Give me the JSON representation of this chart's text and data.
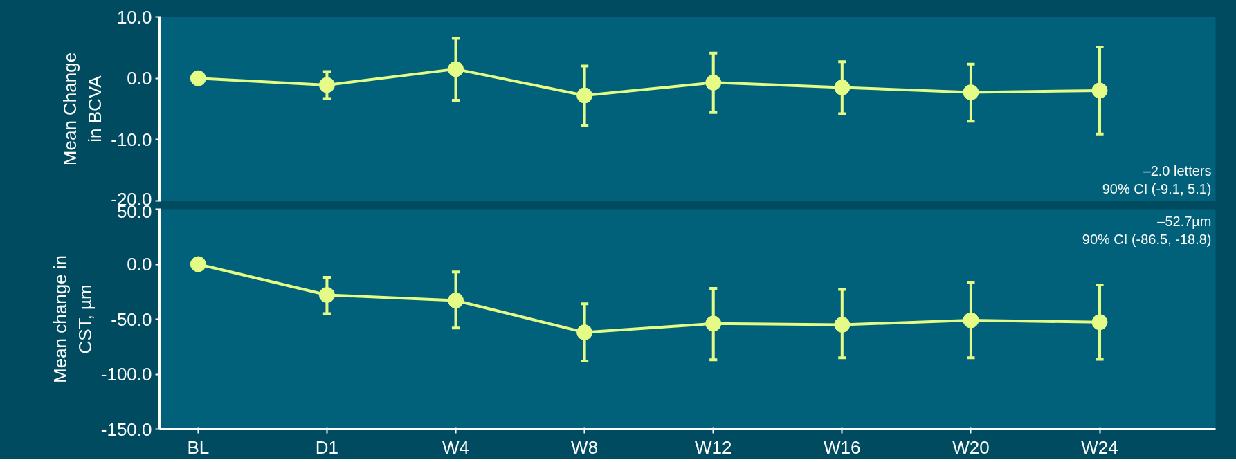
{
  "chart_data": [
    {
      "type": "line",
      "ylabel": "Mean Change in BCVA",
      "categories": [
        null,
        null,
        null,
        null,
        null,
        null,
        null,
        null
      ],
      "series": [
        {
          "color": "#e4fb86",
          "values": [
            0,
            -1.1,
            1.5,
            -2.8,
            -0.7,
            -1.5,
            -2.3,
            -2.0
          ],
          "errors": [
            null,
            [
              -3.3,
              1.1
            ],
            [
              -3.6,
              6.5
            ],
            [
              -7.7,
              2.0
            ],
            [
              -5.6,
              4.1
            ],
            [
              -5.8,
              2.7
            ],
            [
              -7.0,
              2.3
            ],
            [
              -9.1,
              5.1
            ]
          ]
        }
      ],
      "ylim": [
        -20,
        10
      ],
      "yticks": [
        {
          "value": -20,
          "label": "-20.0"
        },
        {
          "value": -10,
          "label": "-10.0"
        },
        {
          "value": 0,
          "label": "0.0"
        },
        {
          "value": 10,
          "label": "10.0"
        }
      ],
      "tick_labels": "y",
      "marker": "circle",
      "annotations": [
        "–2.0 letters\n90% CI (-9.1, 5.1)"
      ]
    },
    {
      "type": "line",
      "ylabel": "Mean change in CST, µm",
      "categories": [
        "BL",
        "D1",
        "W4",
        "W8",
        "W12",
        "W16",
        "W20",
        "W24"
      ],
      "series": [
        {
          "color": "#e4fb86",
          "values": [
            0,
            -28,
            -33,
            -62,
            -54,
            -55,
            -51,
            -52.7
          ],
          "errors": [
            null,
            [
              -45,
              -12
            ],
            [
              -58,
              -7
            ],
            [
              -88,
              -36
            ],
            [
              -87,
              -22
            ],
            [
              -85,
              -23
            ],
            [
              -85,
              -17
            ],
            [
              -86.5,
              -18.8
            ]
          ]
        }
      ],
      "ylim": [
        -150,
        50
      ],
      "yticks": [
        {
          "value": -150,
          "label": "-150.0"
        },
        {
          "value": -100,
          "label": "-100.0"
        },
        {
          "value": -50,
          "label": "-50.0"
        },
        {
          "value": 0,
          "label": "0.0"
        },
        {
          "value": 50,
          "label": "50.0"
        }
      ],
      "marker": "circle",
      "annotations": [
        "–52.7µm\n90% CI (-86.5, -18.8)"
      ]
    }
  ]
}
